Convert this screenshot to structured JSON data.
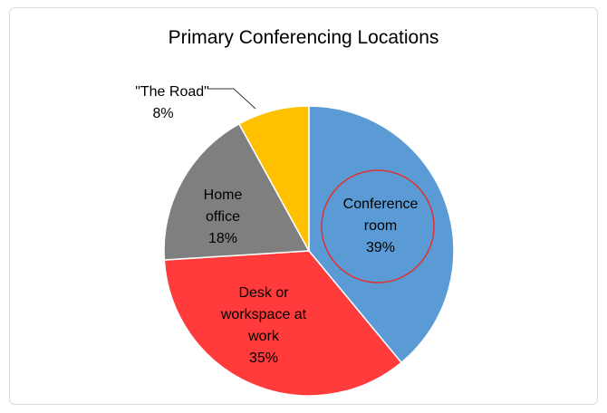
{
  "chart_data": {
    "type": "pie",
    "title": "Primary Conferencing Locations",
    "categories": [
      "Conference room",
      "Desk or workspace at work",
      "Home office",
      "\"The Road\""
    ],
    "values": [
      39,
      35,
      18,
      8
    ],
    "value_labels": [
      "39%",
      "35%",
      "18%",
      "8%"
    ],
    "colors": [
      "#5b9bd5",
      "#ff3b3b",
      "#7f7f7f",
      "#ffc000"
    ]
  }
}
